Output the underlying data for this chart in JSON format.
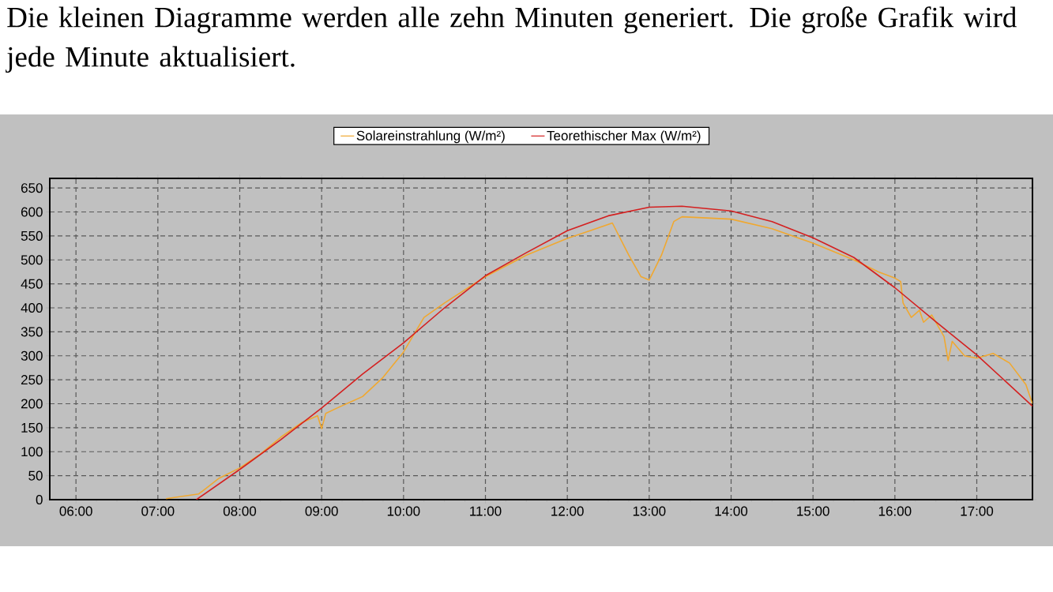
{
  "chart_data": {
    "type": "line",
    "title": "Die kleinen Diagramme werden alle zehn Minuten generiert. Die große Grafik wird jede Minute aktualisiert.",
    "xlim": [
      5.68,
      17.68
    ],
    "ylim": [
      0,
      670
    ],
    "xticks": [
      {
        "value": 6,
        "label": "06:00"
      },
      {
        "value": 7,
        "label": "07:00"
      },
      {
        "value": 8,
        "label": "08:00"
      },
      {
        "value": 9,
        "label": "09:00"
      },
      {
        "value": 10,
        "label": "10:00"
      },
      {
        "value": 11,
        "label": "11:00"
      },
      {
        "value": 12,
        "label": "12:00"
      },
      {
        "value": 13,
        "label": "13:00"
      },
      {
        "value": 14,
        "label": "14:00"
      },
      {
        "value": 15,
        "label": "15:00"
      },
      {
        "value": 16,
        "label": "16:00"
      },
      {
        "value": 17,
        "label": "17:00"
      }
    ],
    "yticks": [
      0,
      50,
      100,
      150,
      200,
      250,
      300,
      350,
      400,
      450,
      500,
      550,
      600,
      650
    ],
    "grid": true,
    "legend": "top",
    "line_style": "solid",
    "marker": "none",
    "series": [
      {
        "name": "Solareinstrahlung (W/m²)",
        "color": "#f0a830",
        "x": [
          7.1,
          7.5,
          7.75,
          8.0,
          8.25,
          8.5,
          8.75,
          8.95,
          9.0,
          9.05,
          9.2,
          9.5,
          9.75,
          10.0,
          10.25,
          10.5,
          11.0,
          11.5,
          12.0,
          12.3,
          12.55,
          12.75,
          12.9,
          13.0,
          13.15,
          13.3,
          13.4,
          14.0,
          14.5,
          15.0,
          15.5,
          15.8,
          16.0,
          16.07,
          16.1,
          16.2,
          16.3,
          16.35,
          16.45,
          16.55,
          16.6,
          16.65,
          16.7,
          16.85,
          17.0,
          17.2,
          17.4,
          17.6,
          17.68
        ],
        "values": [
          2,
          12,
          45,
          66,
          95,
          130,
          160,
          175,
          148,
          180,
          192,
          215,
          255,
          308,
          380,
          410,
          465,
          510,
          545,
          562,
          577,
          510,
          465,
          458,
          510,
          580,
          590,
          585,
          565,
          535,
          500,
          475,
          462,
          455,
          410,
          380,
          395,
          370,
          385,
          355,
          340,
          290,
          330,
          300,
          295,
          305,
          285,
          240,
          200
        ]
      },
      {
        "name": "Teorethischer Max (W/m²)",
        "color": "#d42020",
        "x": [
          7.47,
          8.0,
          8.5,
          9.0,
          9.5,
          10.0,
          10.5,
          11.0,
          11.5,
          12.0,
          12.5,
          13.0,
          13.4,
          14.0,
          14.5,
          15.0,
          15.5,
          16.0,
          16.5,
          17.0,
          17.68
        ],
        "values": [
          0,
          63,
          125,
          191,
          262,
          327,
          400,
          467,
          515,
          561,
          592,
          610,
          612,
          602,
          580,
          546,
          505,
          442,
          371,
          302,
          195
        ]
      }
    ]
  }
}
